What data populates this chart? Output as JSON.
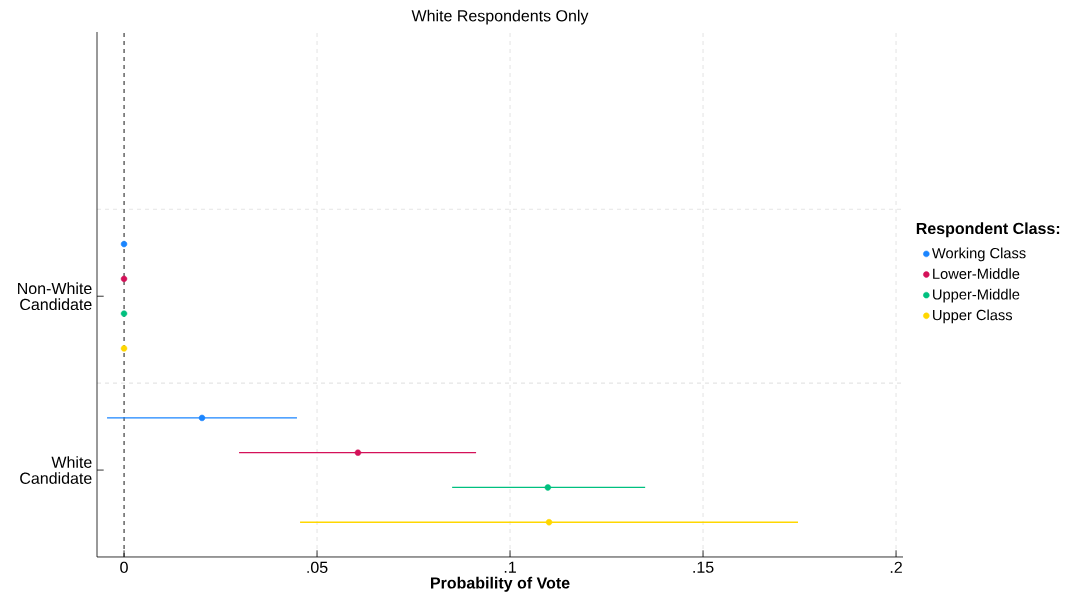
{
  "chart_data": {
    "type": "scatter",
    "orientation": "horizontal",
    "title": "White Respondents Only",
    "xlabel": "Probability of Vote",
    "legend_title": "Respondent Class:",
    "categories": [
      "Non-White Candidate",
      "White Candidate"
    ],
    "series": [
      {
        "name": "Working Class",
        "color": "#1a85ff",
        "values": [
          0,
          0.0202
        ],
        "errors": [
          null,
          [
            -0.0044,
            0.0448
          ]
        ]
      },
      {
        "name": "Lower-Middle",
        "color": "#d41159",
        "values": [
          0,
          0.0606
        ],
        "errors": [
          null,
          [
            0.0298,
            0.0912
          ]
        ]
      },
      {
        "name": "Upper-Middle",
        "color": "#00c07f",
        "values": [
          0,
          0.1098
        ],
        "errors": [
          null,
          [
            0.085,
            0.135
          ]
        ]
      },
      {
        "name": "Upper Class",
        "color": "#ffd700",
        "values": [
          0,
          0.1101
        ],
        "errors": [
          null,
          [
            0.0456,
            0.1746
          ]
        ]
      }
    ],
    "xlim": [
      -0.007,
      0.2018
    ],
    "xticks": [
      0,
      {
        "value": 0.05,
        "label": ".05"
      },
      {
        "value": 0.1,
        "label": ".1"
      },
      {
        "value": 0.15,
        "label": ".15"
      },
      {
        "value": 0.2,
        "label": ".2"
      }
    ],
    "grid": true,
    "legend": "right",
    "ref_lines": [
      {
        "axis": "x",
        "value": 0,
        "color": "#222222",
        "line_style": "dashed"
      }
    ]
  }
}
